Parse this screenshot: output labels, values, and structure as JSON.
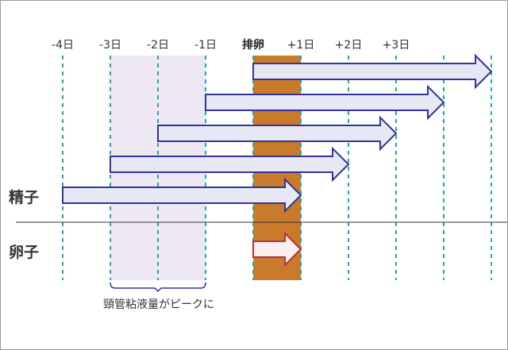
{
  "day_labels": [
    {
      "day": -4,
      "text": "-4日"
    },
    {
      "day": -3,
      "text": "-3日"
    },
    {
      "day": -2,
      "text": "-2日"
    },
    {
      "day": -1,
      "text": "-1日"
    },
    {
      "day": 0,
      "text": "排卵",
      "bold": true
    },
    {
      "day": 1,
      "text": "+1日"
    },
    {
      "day": 2,
      "text": "+2日"
    },
    {
      "day": 3,
      "text": "+3日"
    }
  ],
  "rows": {
    "sperm": "精子",
    "egg": "卵子"
  },
  "sperm_arrows": [
    {
      "start": 0,
      "end": 5
    },
    {
      "start": -1,
      "end": 4
    },
    {
      "start": -2,
      "end": 3
    },
    {
      "start": -3,
      "end": 2
    },
    {
      "start": -4,
      "end": 1
    }
  ],
  "egg_arrow": {
    "start": 0,
    "end": 1
  },
  "ovulation_band": {
    "start": 0,
    "end": 1
  },
  "mucus_peak": {
    "start": -3,
    "end": -1,
    "label": "頸管粘液量がピークに"
  },
  "colors": {
    "grid": "#1fa9a9",
    "ovulation": "#c97a2a",
    "mucus_band": "#ede8f3",
    "sperm_stroke": "#33349a",
    "sperm_fill": "#e6e8f4",
    "egg_stroke": "#b8303a",
    "egg_fill": "#fbeeee"
  }
}
